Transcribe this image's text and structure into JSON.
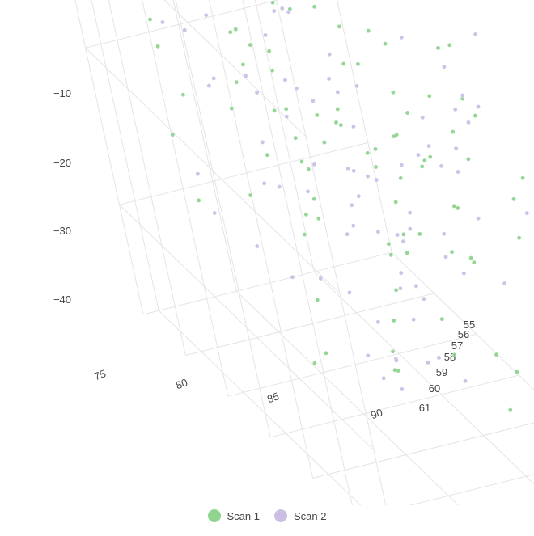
{
  "chart_data": {
    "type": "scatter",
    "title": "",
    "axes": {
      "x": {
        "label": "",
        "ticks": [
          "75",
          "80",
          "85",
          "90"
        ]
      },
      "y": {
        "label": "",
        "ticks": [
          "55",
          "56",
          "57",
          "58",
          "59",
          "60",
          "61"
        ]
      },
      "z": {
        "label": "",
        "ticks": [
          "−10",
          "−20",
          "−30",
          "−40"
        ]
      }
    },
    "legend_placement": "bottom-center",
    "series": [
      {
        "name": "Scan 1",
        "color": "#8fd48f",
        "points": [
          [
            85.5,
            55.4,
            -8.1
          ],
          [
            80.0,
            57.5,
            -26.4
          ],
          [
            88.6,
            56.6,
            -26.0
          ],
          [
            75.0,
            59.8,
            -33.8
          ],
          [
            81.0,
            60.6,
            -36.7
          ],
          [
            85.0,
            59.9,
            -39.5
          ],
          [
            86.9,
            58.9,
            -36.7
          ],
          [
            89.8,
            58.2,
            -28.8
          ],
          [
            75.5,
            56.4,
            -22.0
          ],
          [
            79.9,
            61.0,
            -33.1
          ],
          [
            78.0,
            58.9,
            -31.7
          ],
          [
            84.4,
            55.8,
            -27.6
          ],
          [
            81.6,
            55.9,
            -20.1
          ],
          [
            87.1,
            56.5,
            -15.5
          ],
          [
            89.1,
            55.7,
            -15.2
          ],
          [
            76.1,
            59.3,
            -31.2
          ],
          [
            74.0,
            60.2,
            -35.9
          ],
          [
            76.6,
            57.7,
            -33.0
          ],
          [
            81.9,
            59.7,
            -28.0
          ],
          [
            84.0,
            58.4,
            -35.5
          ],
          [
            86.5,
            60.6,
            -30.6
          ],
          [
            80.9,
            55.6,
            -34.0
          ],
          [
            86.7,
            56.3,
            -16.0
          ],
          [
            74.6,
            57.1,
            -34.4
          ],
          [
            85.0,
            60.4,
            -39.3
          ],
          [
            83.2,
            58.4,
            -31.0
          ],
          [
            82.7,
            57.1,
            -24.2
          ],
          [
            77.3,
            55.5,
            -27.7
          ],
          [
            87.1,
            60.4,
            -28.8
          ],
          [
            84.6,
            59.4,
            -28.1
          ],
          [
            83.2,
            58.5,
            -29.6
          ],
          [
            78.4,
            55.9,
            -19.9
          ],
          [
            81.8,
            58.9,
            -20.4
          ],
          [
            79.4,
            59.8,
            -36.2
          ],
          [
            87.9,
            57.1,
            -30.8
          ],
          [
            85.5,
            56.7,
            -14.0
          ],
          [
            80.7,
            58.2,
            -27.6
          ],
          [
            88.8,
            59.1,
            -18.3
          ],
          [
            82.1,
            56.5,
            -28.3
          ],
          [
            87.3,
            55.6,
            -29.1
          ],
          [
            83.6,
            56.1,
            -22.0
          ],
          [
            86.7,
            59.5,
            -28.5
          ],
          [
            80.6,
            56.2,
            -27.5
          ],
          [
            86.7,
            57.2,
            -15.1
          ],
          [
            78.3,
            60.6,
            -31.9
          ],
          [
            79.6,
            57.0,
            -33.0
          ],
          [
            83.6,
            59.7,
            -27.3
          ],
          [
            80.2,
            57.2,
            -29.8
          ],
          [
            80.3,
            59.7,
            -32.5
          ],
          [
            85.4,
            59.5,
            -31.3
          ],
          [
            79.9,
            57.8,
            -29.9
          ],
          [
            81.0,
            58.7,
            -27.0
          ],
          [
            85.7,
            57.7,
            -22.4
          ],
          [
            79.9,
            56.4,
            -30.0
          ],
          [
            85.9,
            59.6,
            -26.3
          ],
          [
            80.9,
            59.9,
            -32.0
          ],
          [
            81.6,
            60.9,
            -29.5
          ],
          [
            87.2,
            57.1,
            -26.7
          ],
          [
            86.9,
            60.9,
            -26.1
          ],
          [
            85.5,
            58.1,
            -30.3
          ],
          [
            74.2,
            59.7,
            -37.9
          ],
          [
            84.0,
            59.3,
            -25.4
          ],
          [
            80.1,
            56.0,
            -22.5
          ],
          [
            74.6,
            59.3,
            -20.0
          ],
          [
            82.6,
            55.4,
            -29.9
          ],
          [
            84.3,
            58.6,
            -28.8
          ],
          [
            87.0,
            58.6,
            -26.9
          ],
          [
            83.2,
            56.1,
            -33.3
          ],
          [
            84.1,
            57.8,
            -31.9
          ],
          [
            75.1,
            56.5,
            -31.9
          ],
          [
            88.5,
            58.8,
            -23.5
          ],
          [
            78.2,
            55.7,
            -21.3
          ],
          [
            77.9,
            58.6,
            -32.2
          ],
          [
            83.5,
            60.5,
            -31.4
          ],
          [
            78.6,
            59.9,
            -38.9
          ],
          [
            89.6,
            57.9,
            -26.3
          ],
          [
            85.6,
            58.3,
            -24.0
          ],
          [
            77.3,
            56.0,
            -31.2
          ],
          [
            80.3,
            59.7,
            -31.8
          ],
          [
            84.8,
            59.0,
            -29.8
          ],
          [
            87.1,
            55.7,
            -27.2
          ],
          [
            76.8,
            59.5,
            -26.7
          ],
          [
            83.9,
            55.1,
            -32.0
          ],
          [
            85.1,
            57.6,
            -27.0
          ],
          [
            88.1,
            59.3,
            -26.6
          ],
          [
            83.0,
            57.6,
            -30.2
          ],
          [
            84.7,
            56.9,
            -31.6
          ],
          [
            83.0,
            58.2,
            -24.9
          ],
          [
            81.4,
            57.9,
            -30.3
          ],
          [
            81.7,
            59.5,
            -30.0
          ],
          [
            79.8,
            55.4,
            -25.6
          ],
          [
            88.6,
            56.5,
            -24.2
          ],
          [
            78.8,
            58.5,
            -31.7
          ],
          [
            81.1,
            60.3,
            -29.8
          ],
          [
            79.0,
            59.8,
            -39.3
          ],
          [
            77.9,
            60.3,
            -36.5
          ],
          [
            76.6,
            55.9,
            -28.2
          ],
          [
            84.8,
            59.7,
            -30.5
          ],
          [
            84.1,
            60.4,
            -41.5
          ],
          [
            81.2,
            57.2,
            -33.3
          ]
        ]
      },
      {
        "name": "Scan 2",
        "color": "#cbbfe6",
        "points": [
          [
            81.9,
            55.1,
            -21.6
          ],
          [
            88.2,
            59.9,
            -12.5
          ],
          [
            83.0,
            55.2,
            -33.5
          ],
          [
            74.6,
            61.0,
            -30.1
          ],
          [
            83.9,
            55.1,
            -27.5
          ],
          [
            81.9,
            56.7,
            -31.9
          ],
          [
            86.5,
            58.5,
            -28.4
          ],
          [
            74.9,
            55.6,
            -22.2
          ],
          [
            88.1,
            57.7,
            -18.7
          ],
          [
            84.1,
            56.1,
            -32.2
          ],
          [
            75.4,
            57.1,
            -35.4
          ],
          [
            80.0,
            60.3,
            -30.0
          ],
          [
            86.1,
            58.7,
            -29.6
          ],
          [
            74.7,
            58.1,
            -24.5
          ],
          [
            79.9,
            60.3,
            -37.7
          ],
          [
            79.2,
            60.3,
            -32.8
          ],
          [
            86.9,
            60.8,
            -28.6
          ],
          [
            77.5,
            57.1,
            -23.3
          ],
          [
            81.8,
            58.4,
            -30.9
          ],
          [
            85.9,
            59.8,
            -31.3
          ],
          [
            83.4,
            57.6,
            -35.0
          ],
          [
            85.7,
            59.6,
            -28.8
          ],
          [
            83.4,
            59.9,
            -31.4
          ],
          [
            79.4,
            59.6,
            -41.1
          ],
          [
            80.5,
            61.0,
            -37.2
          ],
          [
            77.0,
            56.0,
            -26.5
          ],
          [
            89.6,
            59.1,
            -22.3
          ],
          [
            87.3,
            58.0,
            -24.8
          ],
          [
            83.0,
            58.7,
            -34.5
          ],
          [
            89.1,
            58.2,
            -26.6
          ],
          [
            83.9,
            59.4,
            -27.8
          ],
          [
            84.4,
            60.9,
            -32.2
          ],
          [
            80.0,
            60.1,
            -35.5
          ],
          [
            82.9,
            58.5,
            -25.5
          ],
          [
            87.4,
            57.5,
            -18.7
          ],
          [
            75.1,
            55.8,
            -24.3
          ],
          [
            82.8,
            60.1,
            -32.2
          ],
          [
            78.1,
            59.6,
            -30.9
          ],
          [
            77.7,
            58.9,
            -29.9
          ],
          [
            88.0,
            59.1,
            -25.8
          ],
          [
            74.9,
            58.4,
            -34.0
          ],
          [
            82.9,
            56.4,
            -23.4
          ],
          [
            78.2,
            60.2,
            -37.3
          ],
          [
            89.3,
            56.4,
            -14.8
          ],
          [
            87.0,
            57.2,
            -18.1
          ],
          [
            85.2,
            56.9,
            -15.8
          ],
          [
            80.9,
            57.7,
            -32.1
          ],
          [
            82.1,
            58.1,
            -31.6
          ],
          [
            80.4,
            58.8,
            -31.7
          ],
          [
            79.4,
            60.9,
            -35.7
          ],
          [
            85.6,
            55.2,
            -30.0
          ],
          [
            86.7,
            59.2,
            -28.6
          ],
          [
            81.4,
            56.3,
            -19.5
          ],
          [
            81.6,
            59.8,
            -30.9
          ],
          [
            75.1,
            60.9,
            -34.5
          ],
          [
            80.4,
            56.7,
            -30.0
          ],
          [
            81.7,
            59.2,
            -35.3
          ],
          [
            76.2,
            56.2,
            -22.6
          ],
          [
            85.2,
            58.2,
            -31.9
          ],
          [
            80.0,
            55.7,
            -31.6
          ],
          [
            79.9,
            57.0,
            -35.1
          ],
          [
            76.8,
            58.3,
            -28.1
          ],
          [
            88.4,
            59.3,
            -26.1
          ],
          [
            77.4,
            60.1,
            -38.6
          ],
          [
            83.6,
            57.9,
            -33.0
          ],
          [
            85.8,
            56.3,
            -31.5
          ],
          [
            76.2,
            57.0,
            -24.2
          ],
          [
            87.2,
            56.7,
            -23.6
          ],
          [
            87.3,
            55.5,
            -24.9
          ],
          [
            87.6,
            59.3,
            -26.9
          ],
          [
            82.9,
            57.1,
            -30.1
          ],
          [
            84.3,
            59.8,
            -34.4
          ],
          [
            83.8,
            57.7,
            -30.4
          ],
          [
            83.3,
            58.0,
            -36.2
          ],
          [
            81.4,
            60.0,
            -29.3
          ],
          [
            80.7,
            60.2,
            -34.1
          ],
          [
            88.4,
            58.6,
            -28.1
          ],
          [
            85.1,
            55.7,
            -28.4
          ],
          [
            83.4,
            56.7,
            -25.6
          ],
          [
            86.5,
            56.9,
            -12.3
          ],
          [
            75.3,
            56.9,
            -33.4
          ],
          [
            82.9,
            56.4,
            -30.6
          ],
          [
            77.8,
            57.6,
            -32.8
          ],
          [
            79.0,
            59.4,
            -31.1
          ],
          [
            84.2,
            55.8,
            -18.3
          ],
          [
            84.3,
            56.3,
            -26.0
          ],
          [
            84.4,
            57.0,
            -16.7
          ],
          [
            78.0,
            60.3,
            -37.1
          ],
          [
            77.6,
            60.2,
            -34.8
          ],
          [
            74.8,
            59.3,
            -33.6
          ],
          [
            86.6,
            56.1,
            -23.8
          ],
          [
            84.9,
            57.5,
            -34.6
          ],
          [
            86.5,
            57.1,
            -18.0
          ],
          [
            83.7,
            57.5,
            -28.7
          ],
          [
            84.5,
            56.1,
            -20.6
          ],
          [
            76.3,
            59.4,
            -33.8
          ],
          [
            80.4,
            60.2,
            -33.2
          ],
          [
            83.9,
            57.4,
            -26.6
          ],
          [
            86.6,
            58.7,
            -31.0
          ],
          [
            82.5,
            56.3,
            -27.9
          ]
        ]
      }
    ]
  }
}
